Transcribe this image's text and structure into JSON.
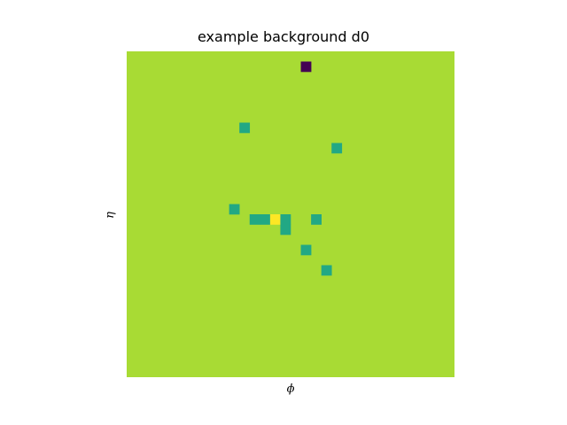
{
  "chart_data": {
    "type": "heatmap",
    "title": "example background d0",
    "xlabel": "ϕ",
    "ylabel": "η",
    "grid": false,
    "legend": "none",
    "rows": 32,
    "cols": 32,
    "background_value": 0.9,
    "colors": {
      "background": "#a8db34",
      "low": "#440154",
      "mid": "#22a884",
      "high": "#fde725"
    },
    "cells": [
      {
        "row": 1,
        "col": 17,
        "value": 0.0
      },
      {
        "row": 7,
        "col": 11,
        "value": 0.6
      },
      {
        "row": 9,
        "col": 20,
        "value": 0.6
      },
      {
        "row": 15,
        "col": 10,
        "value": 0.6
      },
      {
        "row": 16,
        "col": 12,
        "value": 0.6
      },
      {
        "row": 16,
        "col": 13,
        "value": 0.6
      },
      {
        "row": 16,
        "col": 14,
        "value": 1.0
      },
      {
        "row": 16,
        "col": 15,
        "value": 0.6
      },
      {
        "row": 16,
        "col": 18,
        "value": 0.6
      },
      {
        "row": 17,
        "col": 15,
        "value": 0.6
      },
      {
        "row": 19,
        "col": 17,
        "value": 0.6
      },
      {
        "row": 21,
        "col": 19,
        "value": 0.6
      }
    ]
  }
}
